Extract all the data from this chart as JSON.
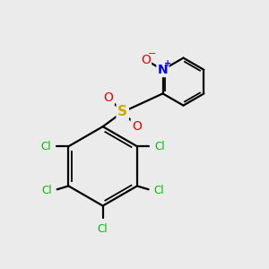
{
  "bg_color": "#ebebeb",
  "bond_color": "#000000",
  "cl_color": "#00bb00",
  "o_color": "#ee0000",
  "n_color": "#0000ee",
  "s_color": "#ccaa00",
  "figsize": [
    3.0,
    3.0
  ],
  "dpi": 100,
  "xlim": [
    0,
    10
  ],
  "ylim": [
    0,
    10
  ]
}
